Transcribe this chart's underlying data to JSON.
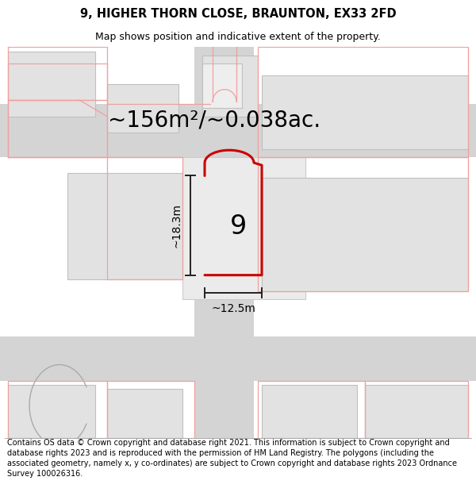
{
  "title": "9, HIGHER THORN CLOSE, BRAUNTON, EX33 2FD",
  "subtitle": "Map shows position and indicative extent of the property.",
  "area_label": "~156m²/~0.038ac.",
  "number_label": "9",
  "width_label": "~12.5m",
  "height_label": "~18.3m",
  "footer": "Contains OS data © Crown copyright and database right 2021. This information is subject to Crown copyright and database rights 2023 and is reproduced with the permission of HM Land Registry. The polygons (including the associated geometry, namely x, y co-ordinates) are subject to Crown copyright and database rights 2023 Ordnance Survey 100026316.",
  "bg_color": "#ffffff",
  "road_gray": "#d4d4d4",
  "block_gray": "#e2e2e2",
  "block_edge": "#c0c0c0",
  "pink": "#f0a0a0",
  "red": "#cc0000",
  "dim_col": "#222222",
  "title_fs": 10.5,
  "subtitle_fs": 9,
  "area_fs": 20,
  "num_fs": 24,
  "dim_fs": 10,
  "footer_fs": 7.0
}
